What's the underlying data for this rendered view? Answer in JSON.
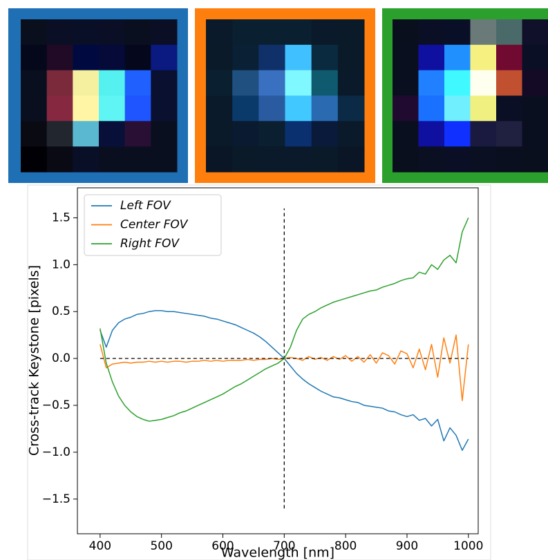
{
  "chart_data": {
    "type": "line",
    "xlabel": "Wavelength [nm]",
    "ylabel": "Cross-track Keystone [pixels]",
    "xlim": [
      363,
      1016
    ],
    "ylim": [
      -1.87,
      1.82
    ],
    "xticks": [
      400,
      500,
      600,
      700,
      800,
      900,
      1000
    ],
    "yticks": [
      {
        "value": -1.5,
        "label": "−1.5"
      },
      {
        "value": -1.0,
        "label": "−1.0"
      },
      {
        "value": -0.5,
        "label": "−0.5"
      },
      {
        "value": 0,
        "label": "0.0"
      },
      0.5,
      {
        "value": 1.0,
        "label": "1.0"
      },
      1.5
    ],
    "grid": false,
    "legend": "upper left",
    "vline": {
      "x": 700,
      "y": [
        -1.6,
        1.6
      ]
    },
    "hline": {
      "y": 0,
      "x": [
        400,
        1000
      ]
    },
    "x": [
      400,
      410,
      420,
      430,
      440,
      450,
      460,
      470,
      480,
      490,
      500,
      510,
      520,
      530,
      540,
      550,
      560,
      570,
      580,
      590,
      600,
      610,
      620,
      630,
      640,
      650,
      660,
      670,
      680,
      690,
      700,
      710,
      720,
      730,
      740,
      750,
      760,
      770,
      780,
      790,
      800,
      810,
      820,
      830,
      840,
      850,
      860,
      870,
      880,
      890,
      900,
      910,
      920,
      930,
      940,
      950,
      960,
      970,
      980,
      990,
      1000
    ],
    "series": [
      {
        "name": "Left FOV",
        "color": "#1f77b4",
        "values": [
          0.3,
          0.12,
          0.3,
          0.38,
          0.42,
          0.44,
          0.47,
          0.48,
          0.5,
          0.51,
          0.51,
          0.5,
          0.5,
          0.49,
          0.48,
          0.47,
          0.46,
          0.45,
          0.43,
          0.42,
          0.4,
          0.38,
          0.36,
          0.33,
          0.3,
          0.27,
          0.23,
          0.18,
          0.12,
          0.06,
          0.0,
          -0.08,
          -0.16,
          -0.22,
          -0.27,
          -0.31,
          -0.35,
          -0.38,
          -0.41,
          -0.42,
          -0.44,
          -0.46,
          -0.47,
          -0.5,
          -0.51,
          -0.52,
          -0.53,
          -0.56,
          -0.57,
          -0.6,
          -0.62,
          -0.6,
          -0.66,
          -0.64,
          -0.72,
          -0.65,
          -0.88,
          -0.74,
          -0.82,
          -0.98,
          -0.86
        ]
      },
      {
        "name": "Center FOV",
        "color": "#ff7f0e",
        "values": [
          0.15,
          -0.1,
          -0.06,
          -0.05,
          -0.04,
          -0.05,
          -0.04,
          -0.04,
          -0.03,
          -0.04,
          -0.03,
          -0.04,
          -0.03,
          -0.03,
          -0.04,
          -0.03,
          -0.03,
          -0.02,
          -0.03,
          -0.02,
          -0.03,
          -0.02,
          -0.02,
          -0.02,
          -0.01,
          -0.02,
          -0.01,
          -0.01,
          0.0,
          -0.01,
          0.0,
          0.01,
          0.0,
          -0.02,
          0.02,
          -0.01,
          0.01,
          -0.02,
          0.02,
          -0.01,
          0.03,
          -0.03,
          0.02,
          -0.04,
          0.04,
          -0.05,
          0.06,
          0.03,
          -0.06,
          0.08,
          0.05,
          -0.1,
          0.1,
          -0.12,
          0.15,
          -0.2,
          0.22,
          -0.05,
          0.25,
          -0.45,
          0.15
        ]
      },
      {
        "name": "Right FOV",
        "color": "#2ca02c",
        "values": [
          0.32,
          -0.05,
          -0.25,
          -0.4,
          -0.5,
          -0.57,
          -0.62,
          -0.65,
          -0.67,
          -0.66,
          -0.65,
          -0.63,
          -0.61,
          -0.58,
          -0.56,
          -0.53,
          -0.5,
          -0.47,
          -0.44,
          -0.41,
          -0.38,
          -0.34,
          -0.3,
          -0.27,
          -0.23,
          -0.19,
          -0.15,
          -0.11,
          -0.08,
          -0.05,
          0.0,
          0.12,
          0.3,
          0.42,
          0.47,
          0.5,
          0.54,
          0.57,
          0.6,
          0.62,
          0.64,
          0.66,
          0.68,
          0.7,
          0.72,
          0.73,
          0.76,
          0.78,
          0.8,
          0.83,
          0.85,
          0.86,
          0.92,
          0.9,
          1.0,
          0.95,
          1.05,
          1.1,
          1.02,
          1.35,
          1.5
        ]
      }
    ]
  }
}
